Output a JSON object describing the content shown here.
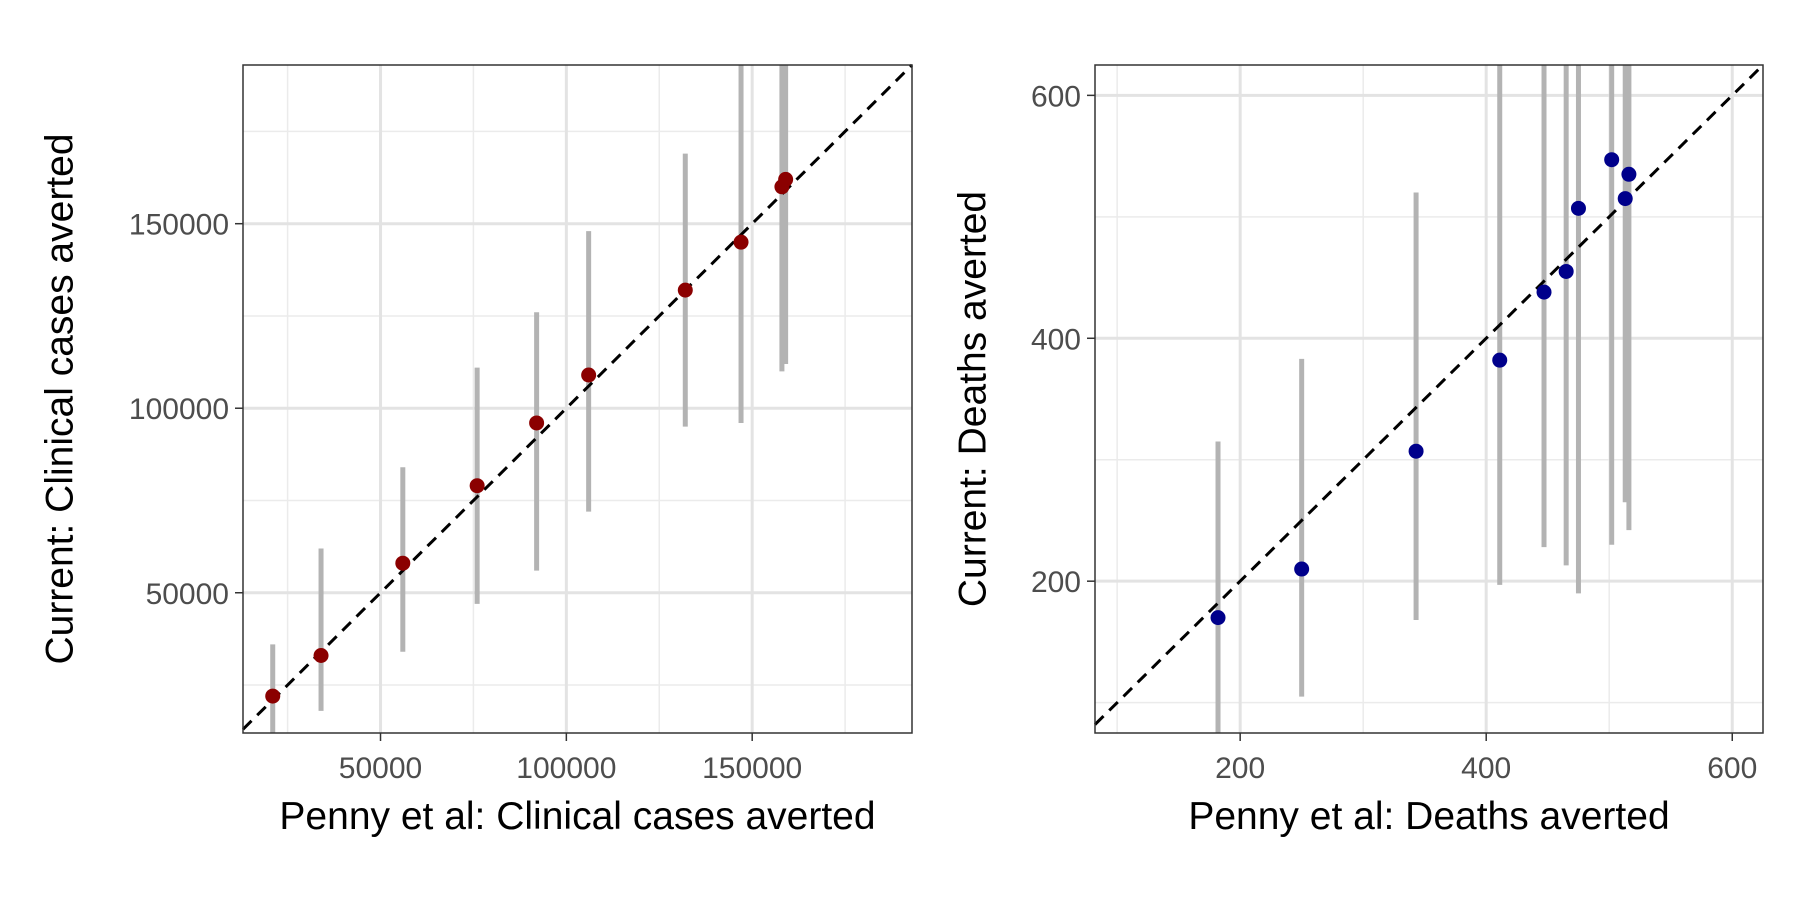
{
  "chart_data": [
    {
      "type": "scatter",
      "xlabel": "Penny et al: Clinical cases averted",
      "ylabel": "Current: Clinical cases averted",
      "xlim": [
        13000,
        193000
      ],
      "ylim": [
        12000,
        193000
      ],
      "xticks": [
        50000,
        100000,
        150000
      ],
      "yticks": [
        50000,
        100000,
        150000
      ],
      "xtick_labels": [
        "50000",
        "100000",
        "150000"
      ],
      "ytick_labels": [
        "50000",
        "100000",
        "150000"
      ],
      "point_color": "#8b0000",
      "errorbar_color": "#b3b3b3",
      "reference_line": "y = x (dashed)",
      "grid": true,
      "points": [
        {
          "x": 21000,
          "y": 22000,
          "ylo": 12000,
          "yhi": 36000
        },
        {
          "x": 34000,
          "y": 33000,
          "ylo": 18000,
          "yhi": 62000
        },
        {
          "x": 56000,
          "y": 58000,
          "ylo": 34000,
          "yhi": 84000
        },
        {
          "x": 76000,
          "y": 79000,
          "ylo": 47000,
          "yhi": 111000
        },
        {
          "x": 92000,
          "y": 96000,
          "ylo": 56000,
          "yhi": 126000
        },
        {
          "x": 106000,
          "y": 109000,
          "ylo": 72000,
          "yhi": 148000
        },
        {
          "x": 132000,
          "y": 132000,
          "ylo": 95000,
          "yhi": 169000
        },
        {
          "x": 147000,
          "y": 145000,
          "ylo": 96000,
          "yhi": 193000
        },
        {
          "x": 158000,
          "y": 160000,
          "ylo": 110000,
          "yhi": 193000
        },
        {
          "x": 159000,
          "y": 162000,
          "ylo": 112000,
          "yhi": 193000
        }
      ]
    },
    {
      "type": "scatter",
      "xlabel": "Penny et al: Deaths averted",
      "ylabel": "Current: Deaths averted",
      "xlim": [
        82,
        625
      ],
      "ylim": [
        75,
        625
      ],
      "xticks": [
        200,
        400,
        600
      ],
      "yticks": [
        200,
        400,
        600
      ],
      "xtick_labels": [
        "200",
        "400",
        "600"
      ],
      "ytick_labels": [
        "200",
        "400",
        "600"
      ],
      "point_color": "#00008b",
      "errorbar_color": "#b3b3b3",
      "reference_line": "y = x (dashed)",
      "grid": true,
      "points": [
        {
          "x": 182,
          "y": 170,
          "ylo": 75,
          "yhi": 315
        },
        {
          "x": 250,
          "y": 210,
          "ylo": 105,
          "yhi": 383
        },
        {
          "x": 343,
          "y": 307,
          "ylo": 168,
          "yhi": 520
        },
        {
          "x": 411,
          "y": 382,
          "ylo": 197,
          "yhi": 625
        },
        {
          "x": 447,
          "y": 438,
          "ylo": 228,
          "yhi": 625
        },
        {
          "x": 465,
          "y": 455,
          "ylo": 213,
          "yhi": 625
        },
        {
          "x": 475,
          "y": 507,
          "ylo": 190,
          "yhi": 625
        },
        {
          "x": 502,
          "y": 547,
          "ylo": 230,
          "yhi": 625
        },
        {
          "x": 513,
          "y": 515,
          "ylo": 265,
          "yhi": 625
        },
        {
          "x": 516,
          "y": 535,
          "ylo": 242,
          "yhi": 625
        }
      ]
    }
  ]
}
